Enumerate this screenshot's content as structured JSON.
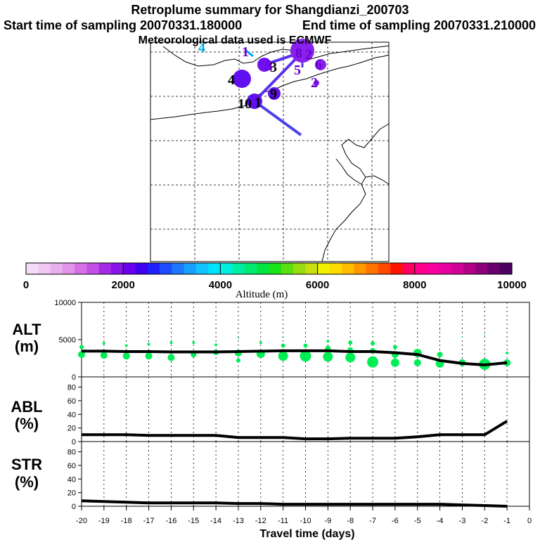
{
  "title": {
    "line1": "Retroplume summary for Shangdianzi_200703",
    "line2_start": "Start time of sampling 20070331.180000",
    "line2_end": "End time of sampling 20070331.210000",
    "line3": "Meteorological data used is ECMWF"
  },
  "map": {
    "cluster_labels": [
      {
        "text": "4",
        "color": "#00aadd"
      },
      {
        "text": "1",
        "color": "#6a00cc"
      },
      {
        "text": "3",
        "color": "#6a00cc"
      },
      {
        "text": "8",
        "color": "#6a00cc"
      },
      {
        "text": "2",
        "color": "#6a00cc"
      },
      {
        "text": "6",
        "color": "#6a00cc"
      },
      {
        "text": "5",
        "color": "#6a00cc"
      },
      {
        "text": "2",
        "color": "#6a00cc"
      },
      {
        "text": "3",
        "color": "#000000"
      },
      {
        "text": "4",
        "color": "#000000"
      },
      {
        "text": "10",
        "color": "#000000"
      },
      {
        "text": "1",
        "color": "#000000"
      },
      {
        "text": "9",
        "color": "#000000"
      }
    ]
  },
  "colorbar": {
    "ticks": [
      "0",
      "2000",
      "4000",
      "6000",
      "8000",
      "10000"
    ],
    "label": "Altitude (m)",
    "colors": [
      "#f4dcf4",
      "#f0c8f2",
      "#eab0ee",
      "#e294ea",
      "#d670e6",
      "#c44ee6",
      "#a42ae8",
      "#8a14ea",
      "#6a00ee",
      "#4000ee",
      "#2020ff",
      "#1f4cff",
      "#1c78ff",
      "#18a0ff",
      "#10c4ff",
      "#00e4ff",
      "#00f0e0",
      "#00eea0",
      "#00ea70",
      "#00e640",
      "#18e418",
      "#5ae010",
      "#98dc10",
      "#c8e010",
      "#f0f000",
      "#ffdc00",
      "#ffbc00",
      "#ff9800",
      "#ff7400",
      "#ff4a00",
      "#ff1400",
      "#ff0060",
      "#ff008c",
      "#f800a0",
      "#e600a0",
      "#d00098",
      "#b00088",
      "#8c0078",
      "#6a006c",
      "#4c0060"
    ]
  },
  "chart_data": [
    {
      "type": "scatter+line",
      "ylabel": "ALT\n(m)",
      "ylabel_line1": "ALT",
      "ylabel_line2": "(m)",
      "ylim": [
        0,
        10000
      ],
      "yticks": [
        "0",
        "5000",
        "10000"
      ],
      "x": [
        -20,
        -19,
        -18,
        -17,
        -16,
        -15,
        -14,
        -13,
        -12,
        -11,
        -10,
        -9,
        -8,
        -7,
        -6,
        -5,
        -4,
        -3,
        -2,
        -1
      ],
      "line_values": [
        3450,
        3450,
        3400,
        3400,
        3350,
        3350,
        3350,
        3400,
        3450,
        3500,
        3500,
        3500,
        3400,
        3400,
        3250,
        3000,
        2200,
        1800,
        1600,
        1900
      ],
      "bubble_color": "#00ee55",
      "bubbles": [
        {
          "x": -20,
          "y": 3000,
          "r": 5
        },
        {
          "x": -20,
          "y": 4000,
          "r": 3
        },
        {
          "x": -19,
          "y": 2900,
          "r": 5
        },
        {
          "x": -19,
          "y": 4500,
          "r": 2
        },
        {
          "x": -18,
          "y": 2800,
          "r": 5
        },
        {
          "x": -18,
          "y": 4200,
          "r": 2
        },
        {
          "x": -17,
          "y": 2800,
          "r": 5
        },
        {
          "x": -17,
          "y": 4400,
          "r": 2
        },
        {
          "x": -16,
          "y": 2600,
          "r": 5
        },
        {
          "x": -16,
          "y": 4600,
          "r": 2
        },
        {
          "x": -15,
          "y": 3000,
          "r": 4
        },
        {
          "x": -15,
          "y": 4600,
          "r": 2
        },
        {
          "x": -14,
          "y": 3300,
          "r": 4
        },
        {
          "x": -14,
          "y": 4300,
          "r": 2
        },
        {
          "x": -13,
          "y": 3200,
          "r": 5
        },
        {
          "x": -13,
          "y": 2200,
          "r": 3
        },
        {
          "x": -13,
          "y": 5200,
          "r": 1
        },
        {
          "x": -12,
          "y": 3100,
          "r": 6
        },
        {
          "x": -12,
          "y": 4600,
          "r": 2
        },
        {
          "x": -11,
          "y": 2800,
          "r": 7
        },
        {
          "x": -11,
          "y": 4200,
          "r": 3
        },
        {
          "x": -11,
          "y": 5300,
          "r": 1
        },
        {
          "x": -10,
          "y": 2800,
          "r": 8
        },
        {
          "x": -10,
          "y": 4200,
          "r": 3
        },
        {
          "x": -9,
          "y": 2700,
          "r": 7
        },
        {
          "x": -9,
          "y": 3800,
          "r": 4
        },
        {
          "x": -9,
          "y": 4800,
          "r": 2
        },
        {
          "x": -8,
          "y": 2600,
          "r": 7
        },
        {
          "x": -8,
          "y": 3600,
          "r": 4
        },
        {
          "x": -8,
          "y": 4600,
          "r": 3
        },
        {
          "x": -7,
          "y": 2000,
          "r": 8
        },
        {
          "x": -7,
          "y": 3500,
          "r": 4
        },
        {
          "x": -7,
          "y": 4500,
          "r": 3
        },
        {
          "x": -6,
          "y": 1900,
          "r": 6
        },
        {
          "x": -6,
          "y": 3000,
          "r": 5
        },
        {
          "x": -6,
          "y": 4000,
          "r": 3
        },
        {
          "x": -5,
          "y": 1900,
          "r": 5
        },
        {
          "x": -5,
          "y": 3200,
          "r": 6
        },
        {
          "x": -5,
          "y": 5800,
          "r": 0.8
        },
        {
          "x": -4,
          "y": 1800,
          "r": 6
        },
        {
          "x": -4,
          "y": 3000,
          "r": 4
        },
        {
          "x": -4,
          "y": 6300,
          "r": 0.8
        },
        {
          "x": -3,
          "y": 1900,
          "r": 5
        },
        {
          "x": -3,
          "y": 5400,
          "r": 0.8
        },
        {
          "x": -2,
          "y": 1700,
          "r": 8
        },
        {
          "x": -2,
          "y": 5600,
          "r": 0.8
        },
        {
          "x": -1,
          "y": 1900,
          "r": 5
        },
        {
          "x": -1,
          "y": 3200,
          "r": 2
        }
      ]
    },
    {
      "type": "line",
      "ylabel": "ABL\n(%)",
      "ylabel_line1": "ABL",
      "ylabel_line2": "(%)",
      "ylim": [
        0,
        95
      ],
      "yticks": [
        "0",
        "20",
        "40",
        "60",
        "80"
      ],
      "x": [
        -20,
        -19,
        -18,
        -17,
        -16,
        -15,
        -14,
        -13,
        -12,
        -11,
        -10,
        -9,
        -8,
        -7,
        -6,
        -5,
        -4,
        -3,
        -2,
        -1
      ],
      "values": [
        10,
        10,
        10,
        9,
        9,
        9,
        9,
        6,
        6,
        6,
        4,
        4,
        5,
        5,
        5,
        7,
        10,
        10,
        10,
        30
      ]
    },
    {
      "type": "line",
      "ylabel": "STR\n(%)",
      "ylabel_line1": "STR",
      "ylabel_line2": "(%)",
      "ylim": [
        0,
        95
      ],
      "yticks": [
        "0",
        "20",
        "40",
        "60",
        "80"
      ],
      "x": [
        -20,
        -19,
        -18,
        -17,
        -16,
        -15,
        -14,
        -13,
        -12,
        -11,
        -10,
        -9,
        -8,
        -7,
        -6,
        -5,
        -4,
        -3,
        -2,
        -1
      ],
      "values": [
        8,
        7,
        6,
        5,
        5,
        5,
        5,
        4,
        4,
        3,
        3,
        3,
        3,
        3,
        3,
        3,
        3,
        2,
        1,
        0
      ],
      "xticks": [
        "-20",
        "-19",
        "-18",
        "-17",
        "-16",
        "-15",
        "-14",
        "-13",
        "-12",
        "-11",
        "-10",
        "-9",
        "-8",
        "-7",
        "-6",
        "-5",
        "-4",
        "-3",
        "-2",
        "-1",
        "0"
      ],
      "xlabel": "Travel time (days)",
      "xlim": [
        -20,
        0
      ]
    }
  ]
}
